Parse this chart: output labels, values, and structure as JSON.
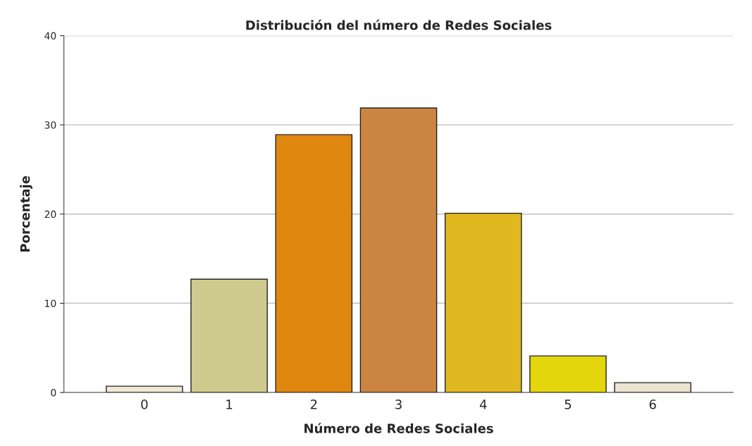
{
  "chart_data": {
    "type": "bar",
    "title": "Distribución del número de Redes Sociales",
    "xlabel": "Número de Redes Sociales",
    "ylabel": "Porcentaje",
    "categories": [
      "0",
      "1",
      "2",
      "3",
      "4",
      "5",
      "6"
    ],
    "values": [
      0.7,
      12.7,
      28.9,
      31.9,
      20.1,
      4.1,
      1.1
    ],
    "colors": [
      "#efe8d4",
      "#cfcb8f",
      "#e0870f",
      "#cc8540",
      "#e0b820",
      "#e3d60d",
      "#ece4cf"
    ],
    "ylim": [
      0,
      40
    ],
    "yticks": [
      0,
      10,
      20,
      30,
      40
    ],
    "grid": "y"
  }
}
